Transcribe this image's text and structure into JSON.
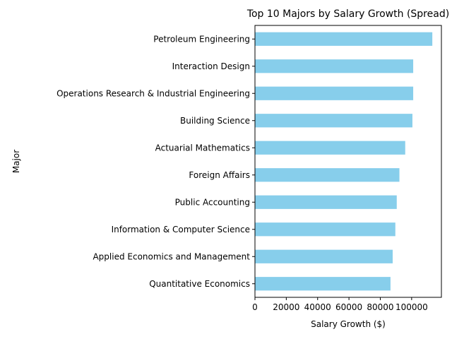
{
  "chart_data": {
    "type": "bar",
    "orientation": "horizontal",
    "title": "Top 10 Majors by Salary Growth (Spread)",
    "xlabel": "Salary Growth ($)",
    "ylabel": "Major",
    "categories": [
      "Quantitative Economics",
      "Applied Economics and Management",
      "Information & Computer Science",
      "Public Accounting",
      "Foreign Affairs",
      "Actuarial Mathematics",
      "Building Science",
      "Operations Research & Industrial Engineering",
      "Interaction Design",
      "Petroleum Engineering"
    ],
    "values": [
      86500,
      87900,
      89600,
      90500,
      92200,
      95900,
      100500,
      101000,
      101000,
      113200
    ],
    "xlim": [
      0,
      119000
    ],
    "xticks": [
      0,
      20000,
      40000,
      60000,
      80000,
      100000
    ],
    "xtick_labels": [
      "0",
      "20000",
      "40000",
      "60000",
      "80000",
      "100000"
    ],
    "bar_color": "#87ceeb",
    "grid": false,
    "legend": false
  }
}
